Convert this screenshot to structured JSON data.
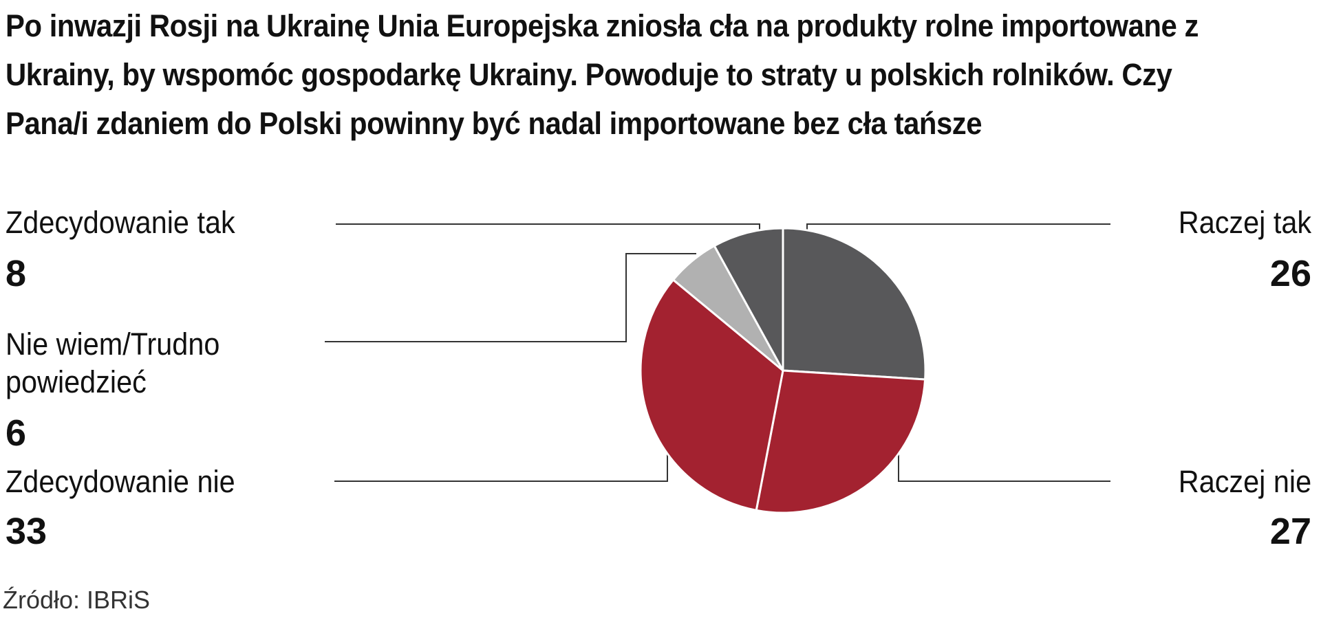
{
  "title": "Po inwazji Rosji na Ukrainę Unia Europejska zniosła cła na produkty rolne importowane z Ukrainy, by wspomóc gospodarkę Ukrainy. Powoduje to straty u polskich rolników. Czy Pana/i zdaniem do Polski powinny być nadal importowane bez cła tańsze",
  "source": "Źródło: IBRiS",
  "chart_data": {
    "type": "pie",
    "slices": [
      {
        "label": "Raczej tak",
        "value": 26,
        "color": "#58585a"
      },
      {
        "label": "Raczej nie",
        "value": 27,
        "color": "#a32230"
      },
      {
        "label": "Zdecydowanie nie",
        "value": 33,
        "color": "#a32230"
      },
      {
        "label": "Nie wiem/Trudno powiedzieć",
        "value": 6,
        "color": "#b1b1b1"
      },
      {
        "label": "Zdecydowanie tak",
        "value": 8,
        "color": "#58585a"
      }
    ]
  },
  "labels": {
    "zdecydowanie_tak": {
      "label": "Zdecydowanie tak",
      "value": "8"
    },
    "nie_wiem": {
      "label_line1": "Nie wiem/Trudno",
      "label_line2": "powiedzieć",
      "value": "6"
    },
    "zdecydowanie_nie": {
      "label": "Zdecydowanie nie",
      "value": "33"
    },
    "raczej_tak": {
      "label": "Raczej tak",
      "value": "26"
    },
    "raczej_nie": {
      "label": "Raczej nie",
      "value": "27"
    }
  }
}
